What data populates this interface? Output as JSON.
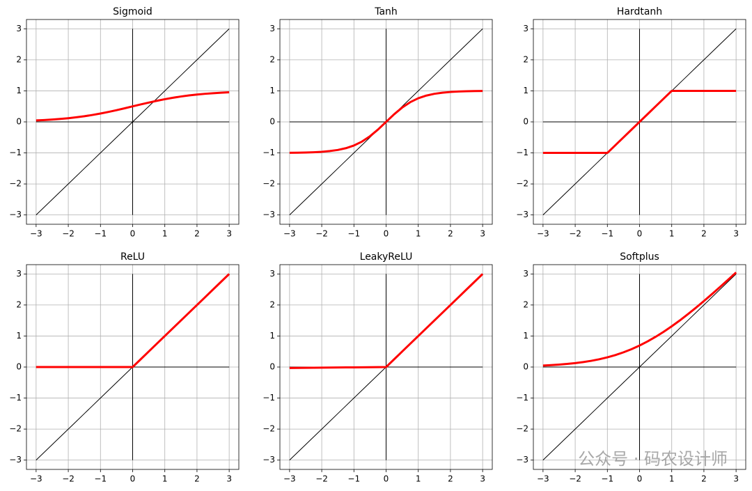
{
  "chart_data": [
    {
      "type": "line",
      "title": "Sigmoid",
      "grid": true,
      "xlim": [
        -3.3,
        3.3
      ],
      "ylim": [
        -3.3,
        3.3
      ],
      "xticks": [
        {
          "value": -3,
          "label": "−3"
        },
        {
          "value": -2,
          "label": "−2"
        },
        {
          "value": -1,
          "label": "−1"
        },
        0,
        1,
        2,
        3
      ],
      "yticks": [
        {
          "value": -3,
          "label": "−3"
        },
        {
          "value": -2,
          "label": "−2"
        },
        {
          "value": -1,
          "label": "−1"
        },
        0,
        1,
        2,
        3
      ],
      "x": [
        -3,
        -2.75,
        -2.5,
        -2.25,
        -2,
        -1.75,
        -1.5,
        -1.25,
        -1,
        -0.75,
        -0.5,
        -0.25,
        0,
        0.25,
        0.5,
        0.75,
        1,
        1.25,
        1.5,
        1.75,
        2,
        2.25,
        2.5,
        2.75,
        3
      ],
      "series": [
        {
          "color": "#ff0000",
          "values": [
            0.047,
            0.06,
            0.076,
            0.095,
            0.119,
            0.148,
            0.182,
            0.223,
            0.269,
            0.321,
            0.378,
            0.438,
            0.5,
            0.562,
            0.622,
            0.679,
            0.731,
            0.777,
            0.818,
            0.852,
            0.881,
            0.905,
            0.924,
            0.94,
            0.953
          ]
        },
        {
          "color": "#000000",
          "values": [
            -3,
            -2.75,
            -2.5,
            -2.25,
            -2,
            -1.75,
            -1.5,
            -1.25,
            -1,
            -0.75,
            -0.5,
            -0.25,
            0,
            0.25,
            0.5,
            0.75,
            1,
            1.25,
            1.5,
            1.75,
            2,
            2.25,
            2.5,
            2.75,
            3
          ]
        }
      ]
    },
    {
      "type": "line",
      "title": "Tanh",
      "grid": true,
      "xlim": [
        -3.3,
        3.3
      ],
      "ylim": [
        -3.3,
        3.3
      ],
      "xticks": [
        {
          "value": -3,
          "label": "−3"
        },
        {
          "value": -2,
          "label": "−2"
        },
        {
          "value": -1,
          "label": "−1"
        },
        0,
        1,
        2,
        3
      ],
      "yticks": [
        {
          "value": -3,
          "label": "−3"
        },
        {
          "value": -2,
          "label": "−2"
        },
        {
          "value": -1,
          "label": "−1"
        },
        0,
        1,
        2,
        3
      ],
      "x": [
        -3,
        -2.75,
        -2.5,
        -2.25,
        -2,
        -1.75,
        -1.5,
        -1.25,
        -1,
        -0.75,
        -0.5,
        -0.25,
        0,
        0.25,
        0.5,
        0.75,
        1,
        1.25,
        1.5,
        1.75,
        2,
        2.25,
        2.5,
        2.75,
        3
      ],
      "series": [
        {
          "color": "#ff0000",
          "values": [
            -0.995,
            -0.992,
            -0.987,
            -0.978,
            -0.964,
            -0.941,
            -0.905,
            -0.848,
            -0.762,
            -0.635,
            -0.462,
            -0.245,
            0,
            0.245,
            0.462,
            0.635,
            0.762,
            0.848,
            0.905,
            0.941,
            0.964,
            0.978,
            0.987,
            0.992,
            0.995
          ]
        },
        {
          "color": "#000000",
          "values": [
            -3,
            -2.75,
            -2.5,
            -2.25,
            -2,
            -1.75,
            -1.5,
            -1.25,
            -1,
            -0.75,
            -0.5,
            -0.25,
            0,
            0.25,
            0.5,
            0.75,
            1,
            1.25,
            1.5,
            1.75,
            2,
            2.25,
            2.5,
            2.75,
            3
          ]
        }
      ]
    },
    {
      "type": "line",
      "title": "Hardtanh",
      "grid": true,
      "xlim": [
        -3.3,
        3.3
      ],
      "ylim": [
        -3.3,
        3.3
      ],
      "xticks": [
        {
          "value": -3,
          "label": "−3"
        },
        {
          "value": -2,
          "label": "−2"
        },
        {
          "value": -1,
          "label": "−1"
        },
        0,
        1,
        2,
        3
      ],
      "yticks": [
        {
          "value": -3,
          "label": "−3"
        },
        {
          "value": -2,
          "label": "−2"
        },
        {
          "value": -1,
          "label": "−1"
        },
        0,
        1,
        2,
        3
      ],
      "x": [
        -3,
        -2.75,
        -2.5,
        -2.25,
        -2,
        -1.75,
        -1.5,
        -1.25,
        -1,
        -0.75,
        -0.5,
        -0.25,
        0,
        0.25,
        0.5,
        0.75,
        1,
        1.25,
        1.5,
        1.75,
        2,
        2.25,
        2.5,
        2.75,
        3
      ],
      "series": [
        {
          "color": "#ff0000",
          "values": [
            -1,
            -1,
            -1,
            -1,
            -1,
            -1,
            -1,
            -1,
            -1,
            -0.75,
            -0.5,
            -0.25,
            0,
            0.25,
            0.5,
            0.75,
            1,
            1,
            1,
            1,
            1,
            1,
            1,
            1,
            1
          ]
        },
        {
          "color": "#000000",
          "values": [
            -3,
            -2.75,
            -2.5,
            -2.25,
            -2,
            -1.75,
            -1.5,
            -1.25,
            -1,
            -0.75,
            -0.5,
            -0.25,
            0,
            0.25,
            0.5,
            0.75,
            1,
            1.25,
            1.5,
            1.75,
            2,
            2.25,
            2.5,
            2.75,
            3
          ]
        }
      ]
    },
    {
      "type": "line",
      "title": "ReLU",
      "grid": true,
      "xlim": [
        -3.3,
        3.3
      ],
      "ylim": [
        -3.3,
        3.3
      ],
      "xticks": [
        {
          "value": -3,
          "label": "−3"
        },
        {
          "value": -2,
          "label": "−2"
        },
        {
          "value": -1,
          "label": "−1"
        },
        0,
        1,
        2,
        3
      ],
      "yticks": [
        {
          "value": -3,
          "label": "−3"
        },
        {
          "value": -2,
          "label": "−2"
        },
        {
          "value": -1,
          "label": "−1"
        },
        0,
        1,
        2,
        3
      ],
      "x": [
        -3,
        -2.75,
        -2.5,
        -2.25,
        -2,
        -1.75,
        -1.5,
        -1.25,
        -1,
        -0.75,
        -0.5,
        -0.25,
        0,
        0.25,
        0.5,
        0.75,
        1,
        1.25,
        1.5,
        1.75,
        2,
        2.25,
        2.5,
        2.75,
        3
      ],
      "series": [
        {
          "color": "#ff0000",
          "values": [
            0,
            0,
            0,
            0,
            0,
            0,
            0,
            0,
            0,
            0,
            0,
            0,
            0,
            0.25,
            0.5,
            0.75,
            1,
            1.25,
            1.5,
            1.75,
            2,
            2.25,
            2.5,
            2.75,
            3
          ]
        },
        {
          "color": "#000000",
          "values": [
            -3,
            -2.75,
            -2.5,
            -2.25,
            -2,
            -1.75,
            -1.5,
            -1.25,
            -1,
            -0.75,
            -0.5,
            -0.25,
            0,
            0.25,
            0.5,
            0.75,
            1,
            1.25,
            1.5,
            1.75,
            2,
            2.25,
            2.5,
            2.75,
            3
          ]
        }
      ]
    },
    {
      "type": "line",
      "title": "LeakyReLU",
      "grid": true,
      "xlim": [
        -3.3,
        3.3
      ],
      "ylim": [
        -3.3,
        3.3
      ],
      "xticks": [
        {
          "value": -3,
          "label": "−3"
        },
        {
          "value": -2,
          "label": "−2"
        },
        {
          "value": -1,
          "label": "−1"
        },
        0,
        1,
        2,
        3
      ],
      "yticks": [
        {
          "value": -3,
          "label": "−3"
        },
        {
          "value": -2,
          "label": "−2"
        },
        {
          "value": -1,
          "label": "−1"
        },
        0,
        1,
        2,
        3
      ],
      "x": [
        -3,
        -2.75,
        -2.5,
        -2.25,
        -2,
        -1.75,
        -1.5,
        -1.25,
        -1,
        -0.75,
        -0.5,
        -0.25,
        0,
        0.25,
        0.5,
        0.75,
        1,
        1.25,
        1.5,
        1.75,
        2,
        2.25,
        2.5,
        2.75,
        3
      ],
      "series": [
        {
          "color": "#ff0000",
          "values": [
            -0.03,
            -0.0275,
            -0.025,
            -0.0225,
            -0.02,
            -0.0175,
            -0.015,
            -0.0125,
            -0.01,
            -0.0075,
            -0.005,
            -0.0025,
            0,
            0.25,
            0.5,
            0.75,
            1,
            1.25,
            1.5,
            1.75,
            2,
            2.25,
            2.5,
            2.75,
            3
          ]
        },
        {
          "color": "#000000",
          "values": [
            -3,
            -2.75,
            -2.5,
            -2.25,
            -2,
            -1.75,
            -1.5,
            -1.25,
            -1,
            -0.75,
            -0.5,
            -0.25,
            0,
            0.25,
            0.5,
            0.75,
            1,
            1.25,
            1.5,
            1.75,
            2,
            2.25,
            2.5,
            2.75,
            3
          ]
        }
      ]
    },
    {
      "type": "line",
      "title": "Softplus",
      "grid": true,
      "xlim": [
        -3.3,
        3.3
      ],
      "ylim": [
        -3.3,
        3.3
      ],
      "xticks": [
        {
          "value": -3,
          "label": "−3"
        },
        {
          "value": -2,
          "label": "−2"
        },
        {
          "value": -1,
          "label": "−1"
        },
        0,
        1,
        2,
        3
      ],
      "yticks": [
        {
          "value": -3,
          "label": "−3"
        },
        {
          "value": -2,
          "label": "−2"
        },
        {
          "value": -1,
          "label": "−1"
        },
        0,
        1,
        2,
        3
      ],
      "x": [
        -3,
        -2.75,
        -2.5,
        -2.25,
        -2,
        -1.75,
        -1.5,
        -1.25,
        -1,
        -0.75,
        -0.5,
        -0.25,
        0,
        0.25,
        0.5,
        0.75,
        1,
        1.25,
        1.5,
        1.75,
        2,
        2.25,
        2.5,
        2.75,
        3
      ],
      "series": [
        {
          "color": "#ff0000",
          "values": [
            0.049,
            0.062,
            0.079,
            0.1,
            0.127,
            0.16,
            0.201,
            0.251,
            0.313,
            0.386,
            0.474,
            0.576,
            0.693,
            0.826,
            0.974,
            1.136,
            1.313,
            1.501,
            1.701,
            1.91,
            2.127,
            2.35,
            2.579,
            2.812,
            3.049
          ]
        },
        {
          "color": "#000000",
          "values": [
            -3,
            -2.75,
            -2.5,
            -2.25,
            -2,
            -1.75,
            -1.5,
            -1.25,
            -1,
            -0.75,
            -0.5,
            -0.25,
            0,
            0.25,
            0.5,
            0.75,
            1,
            1.25,
            1.5,
            1.75,
            2,
            2.25,
            2.5,
            2.75,
            3
          ]
        }
      ]
    }
  ],
  "watermark": "公众号 · 码农设计师"
}
